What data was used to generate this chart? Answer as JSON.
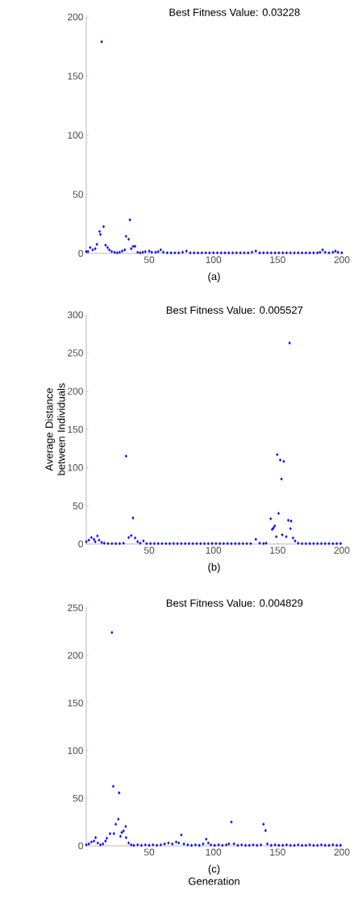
{
  "chart_data": [
    {
      "type": "scatter",
      "title": "Best Fitness Value:  0.03228",
      "annotations": [
        "(a)"
      ],
      "marker": "diamond",
      "color": "#0000ff",
      "xlim": [
        1,
        200
      ],
      "ylim": [
        0,
        200
      ],
      "xticks": [
        50,
        100,
        150,
        200
      ],
      "yticks": [
        0,
        50,
        100,
        150,
        200
      ],
      "x": [
        1,
        2.4,
        4,
        6,
        8,
        9.3,
        11.4,
        12,
        13,
        14.5,
        16,
        17.6,
        19,
        20.8,
        23,
        25,
        27,
        29,
        31,
        32,
        34,
        35,
        36,
        37.5,
        39,
        41,
        43,
        45,
        47,
        50,
        52,
        55,
        57,
        59,
        61,
        64,
        67,
        70,
        73,
        76,
        79,
        82,
        85,
        88,
        91,
        94,
        97,
        100,
        103,
        106,
        109,
        112,
        115,
        118,
        121,
        124,
        127,
        130,
        133,
        136,
        139,
        142,
        145,
        148,
        151,
        154,
        157,
        160,
        163,
        166,
        169,
        172,
        175,
        178,
        181,
        183,
        185,
        187,
        190,
        193,
        195,
        197,
        200
      ],
      "values": [
        1.5,
        1.6,
        5,
        3,
        4,
        7.7,
        18.6,
        16,
        179,
        22.7,
        7,
        5,
        3,
        1.6,
        1,
        0.5,
        1,
        2,
        3,
        14.5,
        12,
        28.4,
        4,
        6,
        6,
        1,
        0.5,
        1,
        1.5,
        2,
        1,
        1,
        1.5,
        3,
        1,
        0.5,
        0.5,
        0.5,
        0.5,
        1,
        2,
        0.5,
        0.5,
        0.5,
        0.5,
        0.5,
        0.5,
        0.5,
        0.5,
        0.5,
        0.5,
        0.5,
        0.5,
        0.5,
        0.5,
        0.5,
        0.5,
        1,
        2,
        0.5,
        0.5,
        0.5,
        0.5,
        0.5,
        0.5,
        0.5,
        0.5,
        0.5,
        0.5,
        0.5,
        0.5,
        0.5,
        0.5,
        0.5,
        0.5,
        1,
        3,
        1,
        0.5,
        1,
        2,
        1,
        0.5
      ]
    },
    {
      "type": "scatter",
      "title": "Best Fitness Value:  0.005527",
      "ylabel": "Average Distance between Individuals",
      "annotations": [
        "(b)"
      ],
      "marker": "diamond",
      "color": "#0000ff",
      "xlim": [
        1,
        200
      ],
      "ylim": [
        0,
        300
      ],
      "xticks": [
        50,
        100,
        150,
        200
      ],
      "yticks": [
        0,
        50,
        100,
        150,
        200,
        250,
        300
      ],
      "x": [
        1,
        3,
        5,
        7,
        8,
        9.7,
        11,
        13,
        15,
        18,
        21,
        24,
        27,
        30,
        32,
        34,
        36,
        37.4,
        39,
        41,
        43,
        45.5,
        48,
        51,
        54,
        57,
        60,
        63,
        66,
        69,
        72,
        75,
        78,
        81,
        84,
        87,
        90,
        93,
        96,
        99,
        102,
        105,
        108,
        111,
        114,
        117,
        120,
        123,
        126,
        129,
        133,
        136,
        139,
        141,
        144.6,
        145.7,
        146.7,
        147.7,
        149,
        149.7,
        150.7,
        152,
        153,
        153.6,
        154.8,
        156.7,
        158.3,
        159.3,
        160,
        160.5,
        162,
        163.6,
        166,
        169,
        172,
        175,
        178,
        181,
        184,
        187,
        190,
        193,
        196,
        199
      ],
      "values": [
        3,
        5,
        8.5,
        6,
        3,
        10.5,
        5,
        2,
        1,
        0.5,
        0.5,
        0.5,
        0.5,
        1,
        115,
        8.5,
        11,
        34,
        8,
        3,
        1,
        4,
        0.5,
        0.5,
        0.5,
        0.5,
        0.5,
        0.5,
        0.5,
        0.5,
        0.5,
        0.5,
        0.5,
        0.5,
        0.5,
        0.5,
        0.5,
        0.5,
        0.5,
        0.5,
        0.5,
        0.5,
        0.5,
        0.5,
        0.5,
        0.5,
        0.5,
        0.5,
        0.5,
        0.5,
        6,
        1,
        0.5,
        1,
        33,
        19,
        21,
        23.6,
        9.5,
        117,
        40,
        110,
        85,
        12,
        108,
        9.5,
        31,
        263,
        20,
        30,
        8,
        4,
        1,
        0.5,
        0.5,
        0.5,
        0.5,
        0.5,
        0.5,
        0.5,
        0.5,
        0.5,
        0.5,
        0.5
      ]
    },
    {
      "type": "scatter",
      "title": "Best Fitness Value:  0.004829",
      "xlabel": "Generation",
      "annotations": [
        "(c)"
      ],
      "marker": "diamond",
      "color": "#0000ff",
      "xlim": [
        1,
        200
      ],
      "ylim": [
        0,
        250
      ],
      "xticks": [
        50,
        100,
        150,
        200
      ],
      "yticks": [
        0,
        50,
        100,
        150,
        200,
        250
      ],
      "x": [
        1,
        3,
        5,
        7,
        8.3,
        10,
        12,
        14,
        16,
        17,
        19.5,
        21,
        22,
        22.5,
        24,
        26,
        26.6,
        27.6,
        28.6,
        30,
        31.7,
        32,
        34,
        36,
        38,
        41,
        44,
        47,
        50,
        53,
        56,
        59,
        62,
        65,
        68,
        71,
        73,
        75,
        77,
        80,
        83,
        86,
        89,
        92,
        94.4,
        96,
        98,
        101,
        104,
        107,
        110,
        112,
        114,
        116,
        119,
        122,
        125,
        128,
        131,
        134,
        137,
        139,
        140.6,
        142,
        145,
        148,
        151,
        154,
        157,
        160,
        163,
        166,
        169,
        172,
        175,
        178,
        181,
        184,
        187,
        190,
        193,
        196,
        199
      ],
      "values": [
        1,
        2,
        4,
        5,
        8.6,
        3,
        1,
        2,
        5,
        8,
        12.8,
        224,
        62.4,
        12.8,
        22.7,
        28,
        55.6,
        10,
        14,
        15.6,
        20.4,
        8.6,
        3,
        1,
        0.5,
        1,
        0.5,
        1,
        0.5,
        1,
        0.5,
        1,
        2,
        3,
        2,
        4,
        3,
        11.4,
        2,
        1,
        0.5,
        1,
        0.5,
        2,
        7,
        3,
        1,
        0.5,
        1,
        0.5,
        1,
        2,
        25,
        2,
        0.5,
        1,
        0.5,
        0.5,
        1,
        0.5,
        1,
        22.7,
        16,
        2,
        0.5,
        1,
        0.5,
        0.5,
        1,
        0.5,
        0.5,
        1,
        0.5,
        0.5,
        1,
        0.5,
        0.5,
        1,
        0.5,
        0.5,
        1,
        0.5,
        0.5
      ]
    }
  ]
}
